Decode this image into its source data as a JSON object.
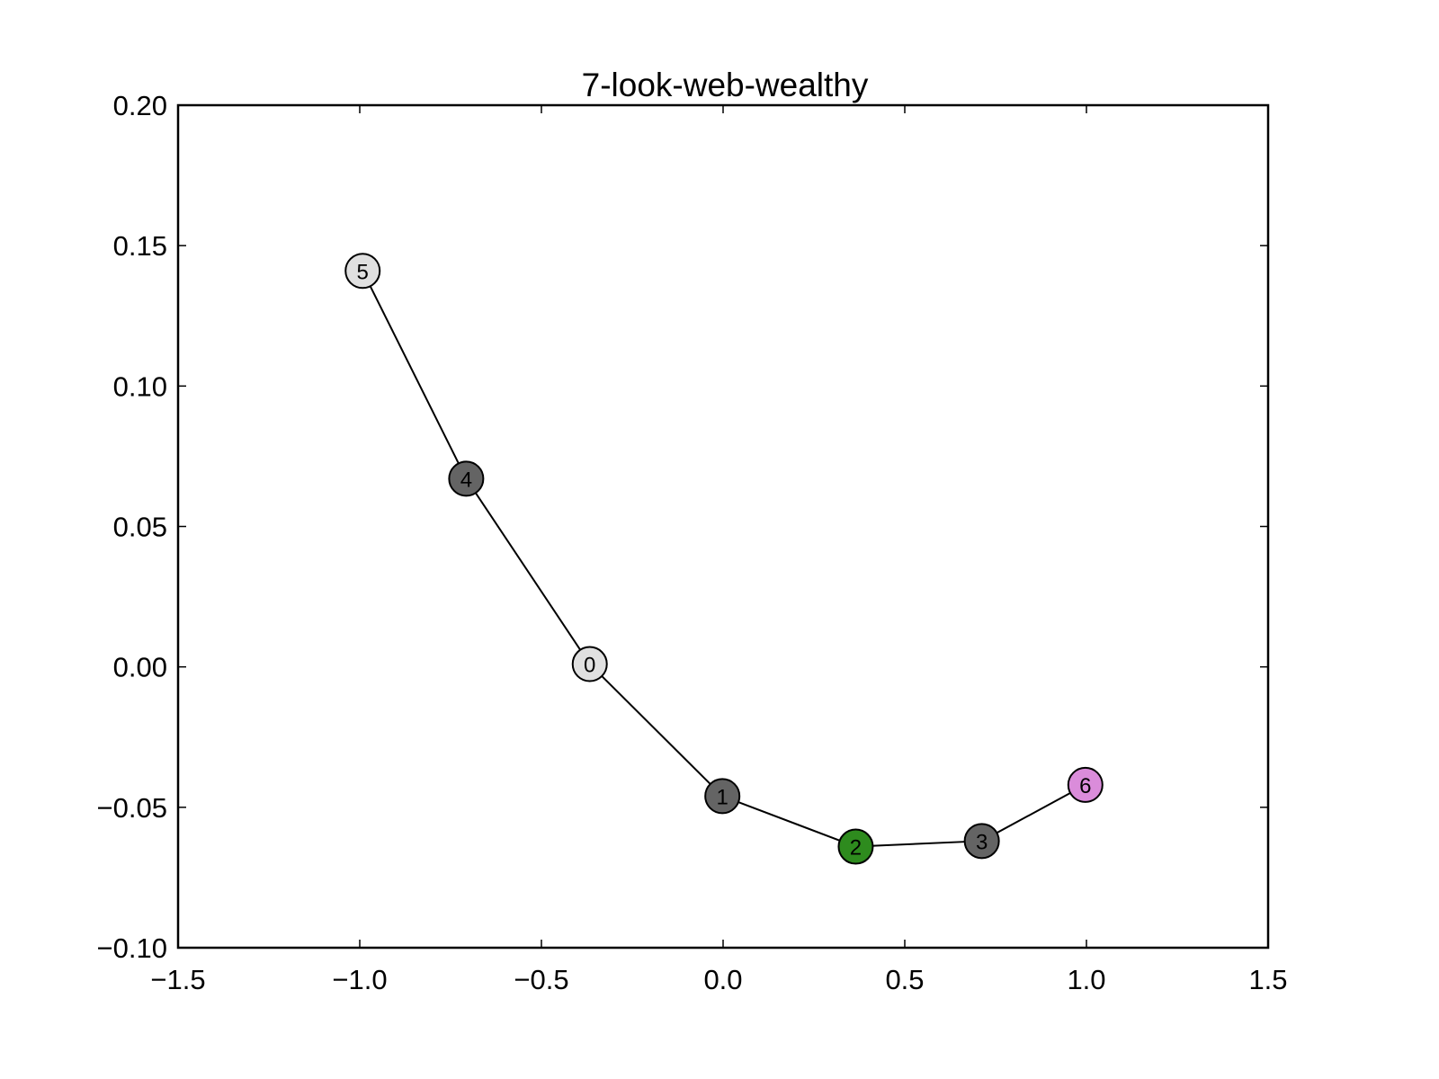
{
  "chart_data": {
    "type": "scatter",
    "title": "7-look-web-wealthy",
    "xlabel": "",
    "ylabel": "",
    "xlim": [
      -1.5,
      1.5
    ],
    "ylim": [
      -0.1,
      0.2
    ],
    "xticks": [
      -1.5,
      -1.0,
      -0.5,
      0.0,
      0.5,
      1.0,
      1.5
    ],
    "xtick_labels": [
      "−1.5",
      "−1.0",
      "−0.5",
      "0.0",
      "0.5",
      "1.0",
      "1.5"
    ],
    "yticks": [
      -0.1,
      -0.05,
      0.0,
      0.05,
      0.1,
      0.15,
      0.2
    ],
    "ytick_labels": [
      "−0.10",
      "−0.05",
      "0.00",
      "0.05",
      "0.10",
      "0.15",
      "0.20"
    ],
    "grid": false,
    "nodes": [
      {
        "label": "0",
        "x": -0.367,
        "y": 0.001,
        "color": "#e0e0e0"
      },
      {
        "label": "1",
        "x": -0.002,
        "y": -0.046,
        "color": "#646464"
      },
      {
        "label": "2",
        "x": 0.365,
        "y": -0.064,
        "color": "#2e8b1e"
      },
      {
        "label": "3",
        "x": 0.712,
        "y": -0.062,
        "color": "#646464"
      },
      {
        "label": "4",
        "x": -0.707,
        "y": 0.067,
        "color": "#646464"
      },
      {
        "label": "5",
        "x": -0.992,
        "y": 0.141,
        "color": "#e0e0e0"
      },
      {
        "label": "6",
        "x": 0.997,
        "y": -0.042,
        "color": "#da8cda"
      }
    ],
    "edges": [
      [
        5,
        4
      ],
      [
        4,
        0
      ],
      [
        0,
        1
      ],
      [
        1,
        2
      ],
      [
        2,
        3
      ],
      [
        3,
        6
      ]
    ]
  }
}
